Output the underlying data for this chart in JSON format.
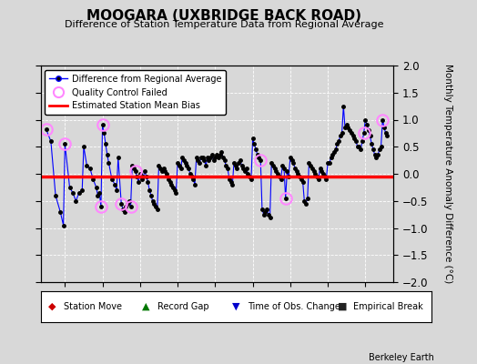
{
  "title": "MOOGARA (UXBRIDGE BACK ROAD)",
  "subtitle": "Difference of Station Temperature Data from Regional Average",
  "ylabel": "Monthly Temperature Anomaly Difference (°C)",
  "bias": -0.05,
  "xlim": [
    1990.7,
    2009.5
  ],
  "ylim": [
    -2,
    2
  ],
  "yticks": [
    -2,
    -1.5,
    -1,
    -0.5,
    0,
    0.5,
    1,
    1.5,
    2
  ],
  "xticks": [
    1992,
    1994,
    1996,
    1998,
    2000,
    2002,
    2004,
    2006,
    2008
  ],
  "bg_color": "#d8d8d8",
  "plot_bg_color": "#d8d8d8",
  "line_color": "#0000ff",
  "marker_color": "#000000",
  "bias_color": "#ff0000",
  "qc_color": "#ff88ff",
  "credit": "Berkeley Earth",
  "data": {
    "x": [
      1991.0,
      1991.25,
      1991.5,
      1991.75,
      1991.917,
      1992.0,
      1992.25,
      1992.417,
      1992.583,
      1992.75,
      1992.917,
      1993.0,
      1993.167,
      1993.333,
      1993.5,
      1993.667,
      1993.75,
      1993.833,
      1993.917,
      1994.0,
      1994.083,
      1994.167,
      1994.25,
      1994.333,
      1994.5,
      1994.667,
      1994.75,
      1994.833,
      1995.0,
      1995.083,
      1995.167,
      1995.25,
      1995.333,
      1995.417,
      1995.5,
      1995.583,
      1995.667,
      1995.75,
      1995.833,
      1995.917,
      1996.0,
      1996.083,
      1996.167,
      1996.25,
      1996.333,
      1996.417,
      1996.5,
      1996.583,
      1996.667,
      1996.75,
      1996.833,
      1996.917,
      1997.0,
      1997.083,
      1997.167,
      1997.25,
      1997.333,
      1997.417,
      1997.5,
      1997.583,
      1997.667,
      1997.75,
      1997.833,
      1997.917,
      1998.0,
      1998.083,
      1998.167,
      1998.25,
      1998.333,
      1998.417,
      1998.5,
      1998.583,
      1998.667,
      1998.75,
      1998.833,
      1998.917,
      1999.0,
      1999.083,
      1999.167,
      1999.25,
      1999.333,
      1999.417,
      1999.5,
      1999.583,
      1999.667,
      1999.75,
      1999.833,
      1999.917,
      2000.0,
      2000.083,
      2000.167,
      2000.25,
      2000.333,
      2000.417,
      2000.5,
      2000.583,
      2000.667,
      2000.75,
      2000.833,
      2000.917,
      2001.0,
      2001.083,
      2001.167,
      2001.25,
      2001.333,
      2001.417,
      2001.5,
      2001.583,
      2001.667,
      2001.75,
      2001.833,
      2001.917,
      2002.0,
      2002.083,
      2002.167,
      2002.25,
      2002.333,
      2002.417,
      2002.5,
      2002.583,
      2002.667,
      2002.75,
      2002.833,
      2002.917,
      2003.0,
      2003.083,
      2003.167,
      2003.25,
      2003.333,
      2003.417,
      2003.5,
      2003.583,
      2003.667,
      2003.75,
      2003.833,
      2003.917,
      2004.0,
      2004.083,
      2004.167,
      2004.25,
      2004.333,
      2004.417,
      2004.5,
      2004.583,
      2004.667,
      2004.75,
      2004.833,
      2004.917,
      2005.0,
      2005.083,
      2005.167,
      2005.25,
      2005.333,
      2005.417,
      2005.5,
      2005.583,
      2005.667,
      2005.75,
      2005.833,
      2005.917,
      2006.0,
      2006.083,
      2006.167,
      2006.25,
      2006.333,
      2006.417,
      2006.5,
      2006.583,
      2006.667,
      2006.75,
      2006.833,
      2006.917,
      2007.0,
      2007.083,
      2007.167,
      2007.25,
      2007.333,
      2007.417,
      2007.5,
      2007.583,
      2007.667,
      2007.75,
      2007.833,
      2007.917,
      2008.0,
      2008.083,
      2008.167,
      2008.25,
      2008.333,
      2008.417,
      2008.5,
      2008.583,
      2008.667,
      2008.75,
      2008.833,
      2008.917,
      2009.0,
      2009.083,
      2009.167
    ],
    "y": [
      0.82,
      0.6,
      -0.4,
      -0.7,
      -0.95,
      0.55,
      -0.25,
      -0.35,
      -0.5,
      -0.35,
      -0.3,
      0.5,
      0.15,
      0.1,
      -0.1,
      -0.25,
      -0.4,
      -0.35,
      -0.6,
      0.9,
      0.75,
      0.55,
      0.35,
      0.2,
      -0.1,
      -0.2,
      -0.3,
      0.3,
      -0.55,
      -0.65,
      -0.7,
      -0.6,
      -0.55,
      -0.5,
      -0.6,
      0.15,
      0.1,
      0.05,
      -0.05,
      -0.15,
      0.0,
      -0.1,
      -0.05,
      0.05,
      -0.05,
      -0.15,
      -0.3,
      -0.4,
      -0.5,
      -0.55,
      -0.6,
      -0.65,
      0.15,
      0.1,
      0.05,
      0.1,
      0.05,
      0.0,
      -0.1,
      -0.15,
      -0.2,
      -0.25,
      -0.3,
      -0.35,
      0.2,
      0.15,
      0.1,
      0.3,
      0.25,
      0.2,
      0.15,
      0.1,
      0.0,
      -0.05,
      -0.1,
      -0.2,
      0.3,
      0.25,
      0.2,
      0.3,
      0.3,
      0.25,
      0.15,
      0.3,
      0.25,
      0.3,
      0.35,
      0.25,
      0.3,
      0.35,
      0.3,
      0.35,
      0.4,
      0.3,
      0.25,
      0.15,
      0.1,
      -0.1,
      -0.15,
      -0.2,
      0.2,
      0.15,
      0.1,
      0.2,
      0.25,
      0.15,
      0.1,
      0.05,
      0.1,
      0.0,
      -0.05,
      -0.1,
      0.65,
      0.55,
      0.45,
      0.35,
      0.3,
      0.25,
      -0.65,
      -0.75,
      -0.7,
      -0.65,
      -0.75,
      -0.8,
      0.2,
      0.15,
      0.1,
      0.05,
      0.0,
      -0.05,
      -0.1,
      0.15,
      0.1,
      -0.45,
      0.05,
      -0.05,
      0.3,
      0.25,
      0.2,
      0.1,
      0.05,
      0.0,
      -0.05,
      -0.1,
      -0.15,
      -0.5,
      -0.55,
      -0.45,
      0.2,
      0.15,
      0.1,
      0.05,
      0.0,
      -0.05,
      -0.1,
      0.1,
      0.05,
      0.0,
      -0.05,
      -0.1,
      0.2,
      0.2,
      0.3,
      0.35,
      0.4,
      0.45,
      0.55,
      0.6,
      0.7,
      0.75,
      1.25,
      0.85,
      0.9,
      0.85,
      0.8,
      0.75,
      0.7,
      0.65,
      0.6,
      0.5,
      0.5,
      0.45,
      0.6,
      0.75,
      1.0,
      0.9,
      0.8,
      0.7,
      0.55,
      0.45,
      0.35,
      0.3,
      0.35,
      0.45,
      0.5,
      1.0,
      0.85,
      0.75,
      0.7
    ],
    "qc_failed_x": [
      1991.0,
      1992.0,
      1993.917,
      1994.0,
      1995.0,
      1995.5,
      1995.75,
      2002.417,
      2003.75,
      2007.917,
      2008.917
    ],
    "qc_failed_y": [
      0.82,
      0.55,
      -0.6,
      0.9,
      -0.55,
      -0.6,
      0.05,
      0.25,
      -0.45,
      0.75,
      1.0
    ]
  }
}
